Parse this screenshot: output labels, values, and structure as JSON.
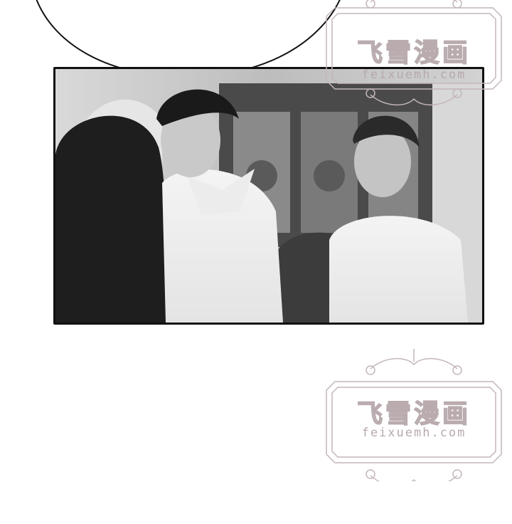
{
  "watermark": {
    "brand": "飞雪漫画",
    "url": "feixuemh.com"
  },
  "colors": {
    "page": "#ffffff",
    "panel_border": "#111111",
    "watermark": "#b9abae"
  }
}
